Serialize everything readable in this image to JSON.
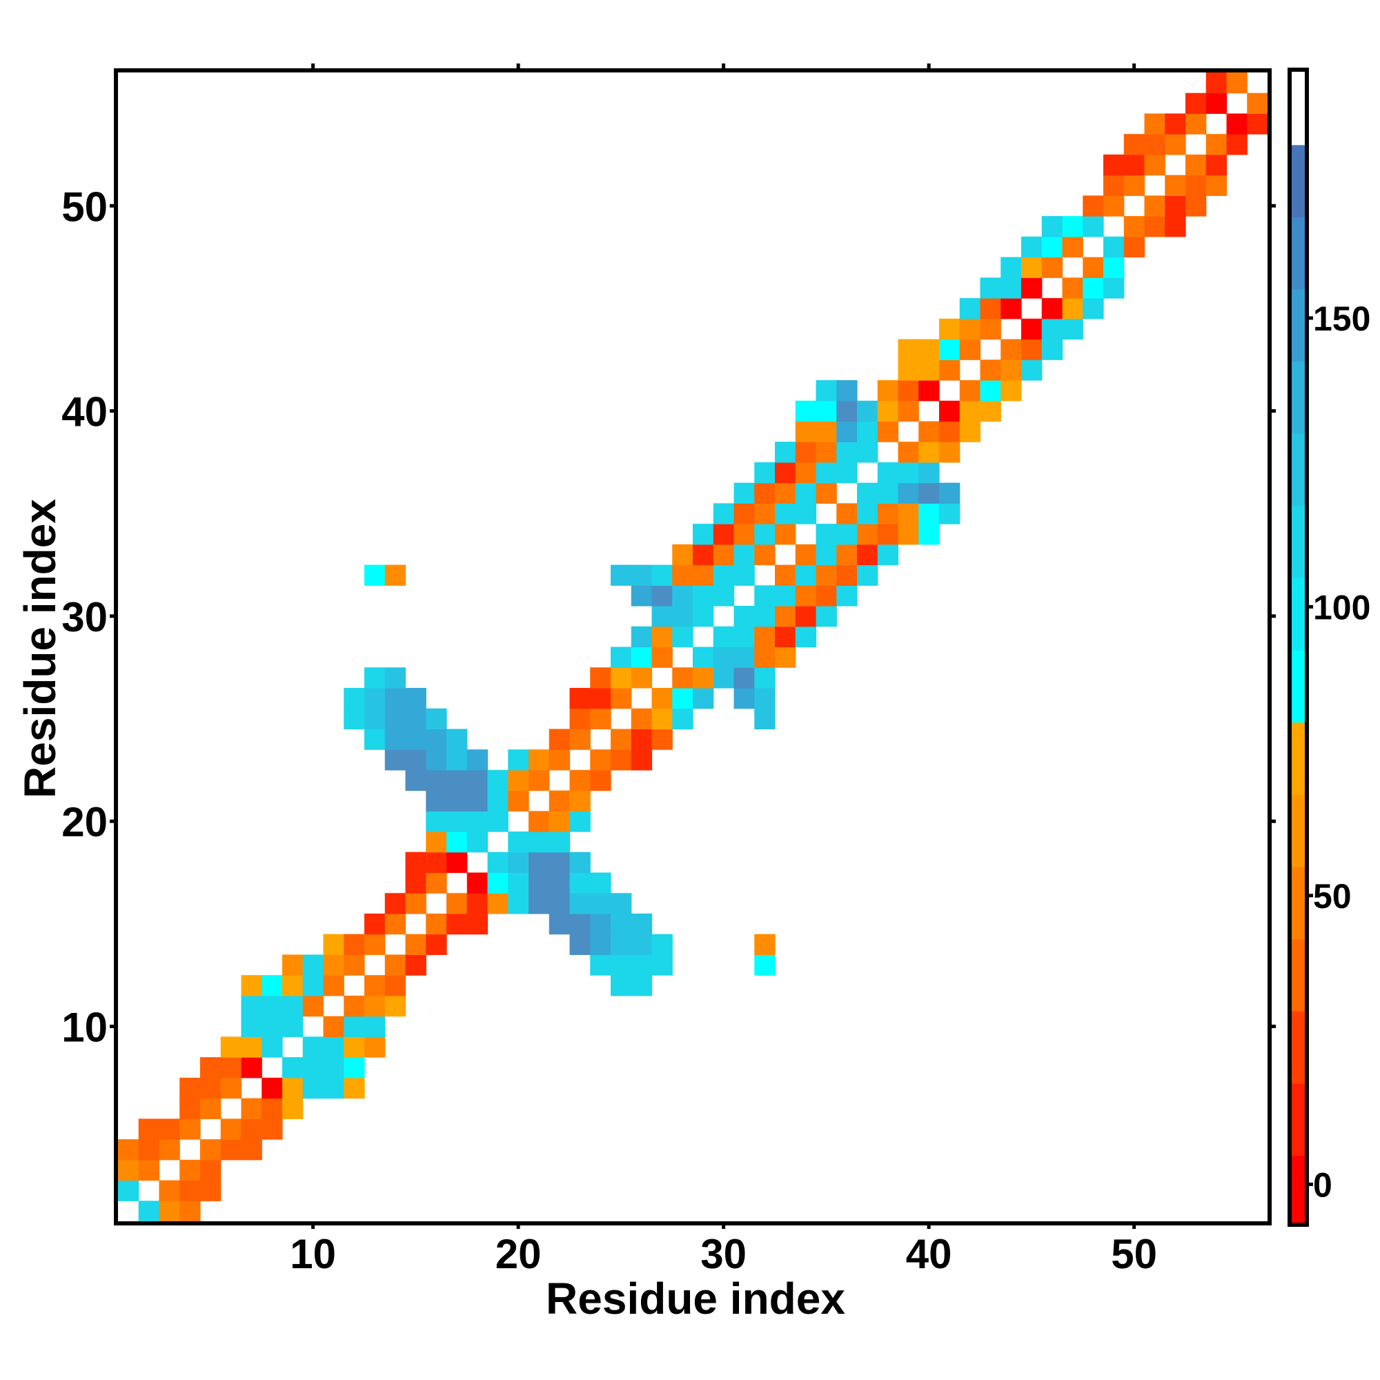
{
  "chart_data": {
    "type": "heatmap",
    "title": "",
    "xlabel": "Residue index",
    "ylabel": "Residue index",
    "xlim": [
      0.5,
      56.5
    ],
    "ylim": [
      0.5,
      56.5
    ],
    "x_ticks": [
      10,
      20,
      30,
      40,
      50
    ],
    "y_ticks": [
      10,
      20,
      30,
      40,
      50
    ],
    "grid": false,
    "levels": {
      "R": {
        "value": 5,
        "color": "#ff0000"
      },
      "r": {
        "value": 18,
        "color": "#ff2a00"
      },
      "o": {
        "value": 32,
        "color": "#ff5f00"
      },
      "O": {
        "value": 42,
        "color": "#ff7700"
      },
      "a": {
        "value": 58,
        "color": "#ff8c00"
      },
      "A": {
        "value": 70,
        "color": "#ffa500"
      },
      "C": {
        "value": 90,
        "color": "#00ffff"
      },
      "c": {
        "value": 105,
        "color": "#1cd6ea"
      },
      "k": {
        "value": 120,
        "color": "#26c4e2"
      },
      "b": {
        "value": 135,
        "color": "#34a8d6"
      },
      "B": {
        "value": 160,
        "color": "#4a8ec4"
      }
    },
    "rows_note_format": "each row: [residue_y, first_residue_x, codes] where '.' = no value",
    "rows": [
      [
        1,
        2,
        "caO"
      ],
      [
        2,
        1,
        "c.Ooo"
      ],
      [
        3,
        1,
        "aO.Oo"
      ],
      [
        4,
        1,
        "OoO.Ooo"
      ],
      [
        5,
        2,
        "ooO.Ooo"
      ],
      [
        6,
        4,
        "oO.OoA"
      ],
      [
        7,
        4,
        "ooO.RAccA"
      ],
      [
        8,
        5,
        "ooR.cccC"
      ],
      [
        9,
        6,
        "AAc.ccAa"
      ],
      [
        10,
        7,
        "ccc.Occ"
      ],
      [
        11,
        7,
        "cccO.OaA"
      ],
      [
        12,
        7,
        "ACAcO.Oo..........cc"
      ],
      [
        13,
        9,
        "acaO.Or........cccc....C"
      ],
      [
        14,
        11,
        "AoO.Or......Bbkkc....a"
      ],
      [
        15,
        13,
        "rO.Orr...BBbkk"
      ],
      [
        16,
        14,
        "rO.OracBBkkk"
      ],
      [
        17,
        15,
        "rO.RCcBBcc"
      ],
      [
        18,
        15,
        "rrR.ckBBk"
      ],
      [
        19,
        16,
        "aCc.ccc"
      ],
      [
        20,
        16,
        "cccc.Oac"
      ],
      [
        21,
        16,
        "BBBcO.Oa"
      ],
      [
        22,
        15,
        "BBBBcaO.Oo"
      ],
      [
        23,
        14,
        "BBbkb.caO.Oor"
      ],
      [
        24,
        13,
        "cbbbk....oO.Oro"
      ],
      [
        25,
        12,
        "ckbbk......oO.OAc...k"
      ],
      [
        26,
        12,
        "ckbb.......rrO.aCk.bk"
      ],
      [
        27,
        13,
        "ck.........oAa.OakBc"
      ],
      [
        28,
        25,
        "cCO.ckkOa"
      ],
      [
        29,
        26,
        "kac.ccOrc"
      ],
      [
        30,
        27,
        "kkc.ccOrc"
      ],
      [
        31,
        26,
        "bBkcc.ccOoc"
      ],
      [
        32,
        13,
        "Ca..........kkcOOcc.OcOoc"
      ],
      [
        33,
        28,
        "arOcO.OcOrc"
      ],
      [
        34,
        29,
        "crOcO.ccOoaC"
      ],
      [
        35,
        30,
        "coOcc.OcOaCc"
      ],
      [
        36,
        31,
        "coOcO.ccbBb"
      ],
      [
        37,
        32,
        "crOcc.cck"
      ],
      [
        38,
        33,
        "coOcc.OAa"
      ],
      [
        39,
        34,
        "aabcO.OoA"
      ],
      [
        40,
        34,
        "CCBkAO.RAA"
      ],
      [
        41,
        35,
        "cb.aoR.OCA"
      ],
      [
        42,
        39,
        "AAO.Oac"
      ],
      [
        43,
        39,
        "AACO.Ooc"
      ],
      [
        44,
        41,
        "AaO.Rcc"
      ],
      [
        45,
        42,
        "coR.RAc"
      ],
      [
        46,
        43,
        "ccR.OCc"
      ],
      [
        47,
        44,
        "cAO.OC"
      ],
      [
        48,
        45,
        "cCO.co"
      ],
      [
        49,
        46,
        "cCc.Oor"
      ],
      [
        50,
        48,
        "oO.Oro"
      ],
      [
        51,
        49,
        "oO.OoO"
      ],
      [
        52,
        49,
        "rrO.Or"
      ],
      [
        53,
        50,
        "ooO.Or"
      ],
      [
        54,
        51,
        "OrO.Rr"
      ],
      [
        55,
        53,
        "rR.O"
      ],
      [
        56,
        54,
        "rO"
      ]
    ],
    "colorbar": {
      "min": -7,
      "max": 193,
      "ticks": [
        0,
        50,
        100,
        150
      ],
      "placement": "right",
      "bands": [
        [
          -7,
          5,
          "#ff0000"
        ],
        [
          5,
          17.5,
          "#ff2000"
        ],
        [
          17.5,
          30,
          "#ff4000"
        ],
        [
          30,
          42.5,
          "#ff6a00"
        ],
        [
          42.5,
          55,
          "#ff8000"
        ],
        [
          55,
          67.5,
          "#ff9500"
        ],
        [
          67.5,
          80,
          "#ffa500"
        ],
        [
          80,
          92.5,
          "#00ffff"
        ],
        [
          92.5,
          105,
          "#10e8f4"
        ],
        [
          105,
          117.5,
          "#1ed6ea"
        ],
        [
          117.5,
          130,
          "#28c4e2"
        ],
        [
          130,
          142.5,
          "#30b2da"
        ],
        [
          142.5,
          155,
          "#389ed2"
        ],
        [
          155,
          167.5,
          "#3f8ac8"
        ],
        [
          167.5,
          180,
          "#4676b8"
        ],
        [
          180,
          193,
          "#ffffff"
        ]
      ]
    }
  }
}
